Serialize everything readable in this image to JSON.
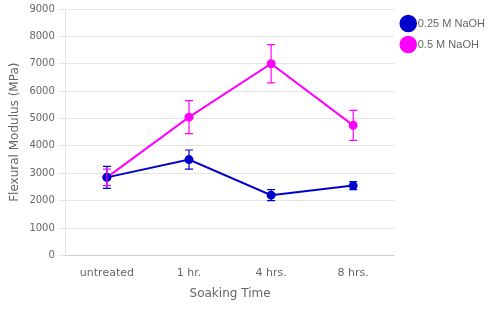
{
  "chart_data": {
    "type": "line",
    "x_label": "Soaking Time",
    "y_label": "Flexural Modulus (MPa)",
    "categories": [
      "untreated",
      "1 hr.",
      "4 hrs.",
      "8 hrs."
    ],
    "series": [
      {
        "name": "0.25 M NaOH",
        "color": "#0000CD",
        "marker": "circle",
        "values": [
          2850,
          3500,
          2200,
          2550
        ],
        "yerr": [
          400,
          350,
          200,
          150
        ]
      },
      {
        "name": "0.5 M NaOH",
        "color": "#FF00FF",
        "marker": "circle",
        "values": [
          2850,
          5050,
          7000,
          4750
        ],
        "yerr": [
          300,
          600,
          700,
          550
        ]
      }
    ],
    "ylim": [
      0,
      9000
    ],
    "yticks": [
      0,
      1000,
      2000,
      3000,
      4000,
      5000,
      6000,
      7000,
      8000,
      9000
    ],
    "grid": "y",
    "legend": "right"
  }
}
